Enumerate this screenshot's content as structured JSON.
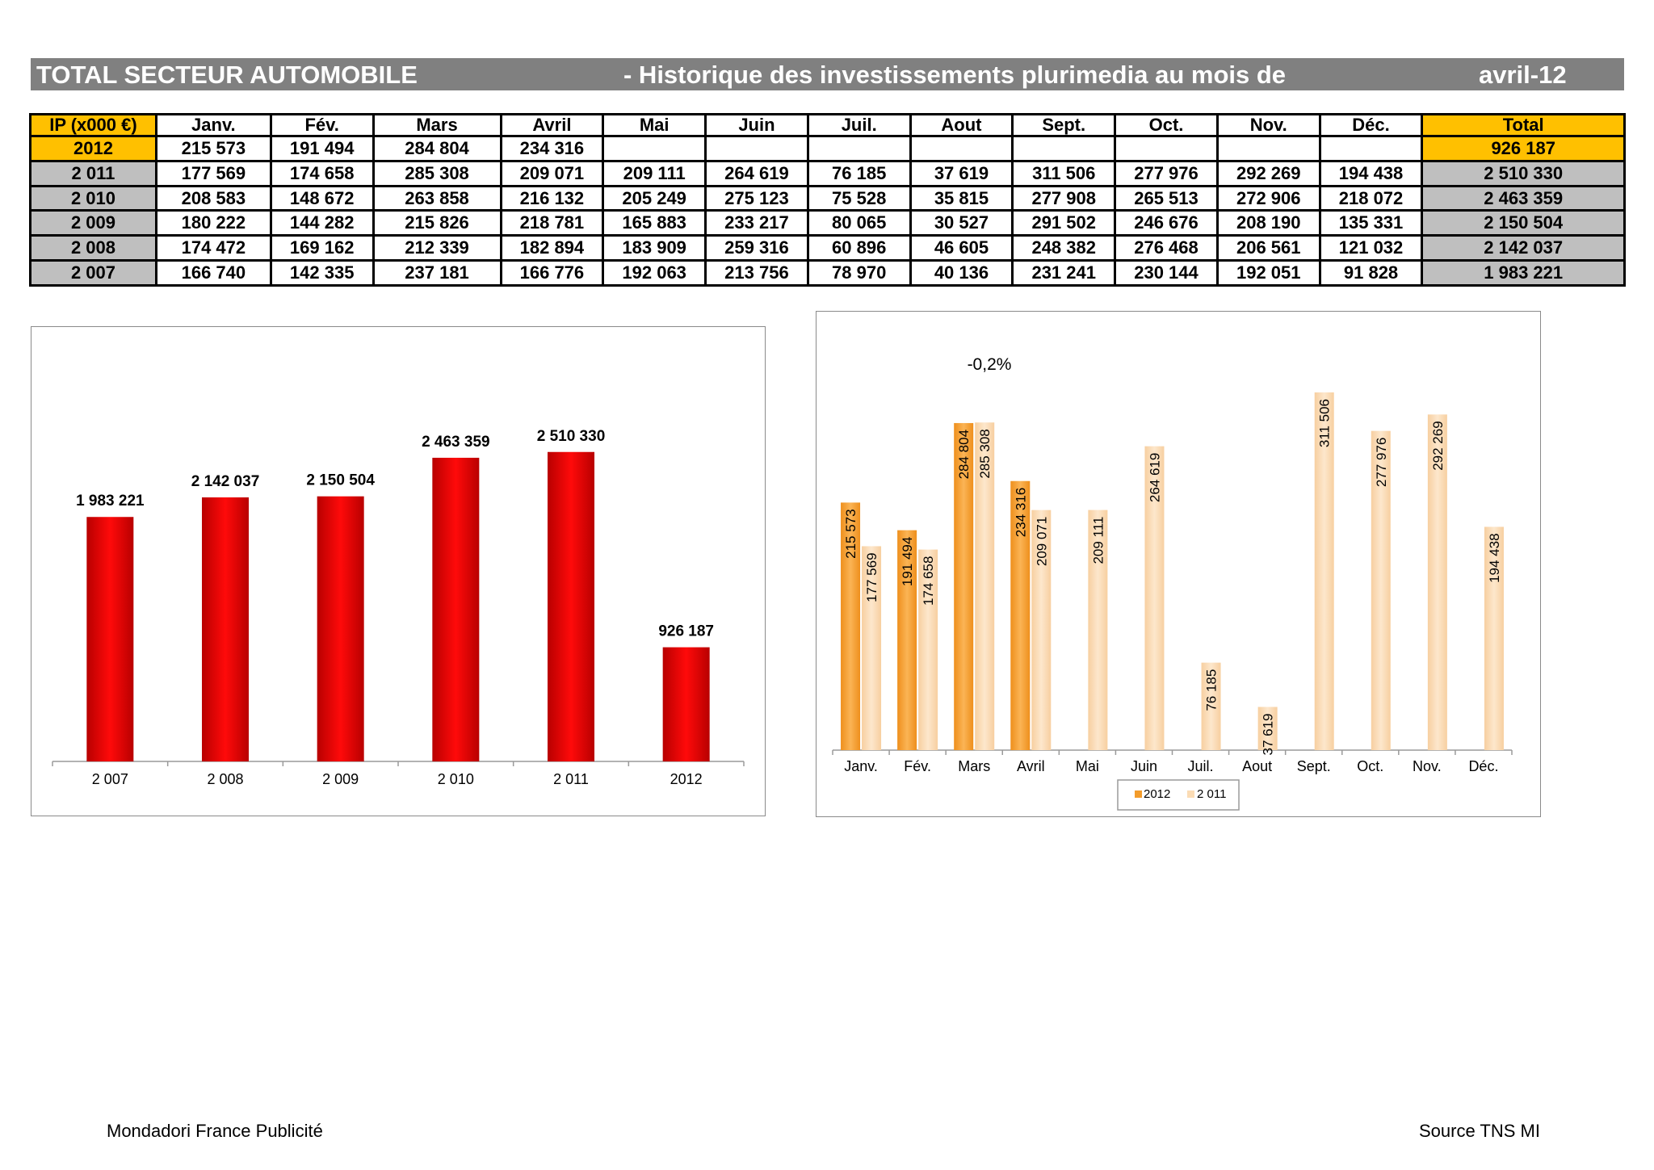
{
  "banner": {
    "left": "TOTAL SECTEUR AUTOMOBILE",
    "middle": "- Historique des investissements plurimedia au mois de",
    "right": "avril-12"
  },
  "table": {
    "headers": [
      "IP (x000 €)",
      "Janv.",
      "Fév.",
      "Mars",
      "Avril",
      "Mai",
      "Juin",
      "Juil.",
      "Aout",
      "Sept.",
      "Oct.",
      "Nov.",
      "Déc.",
      "Total"
    ],
    "rows": [
      [
        "2012",
        "215 573",
        "191 494",
        "284 804",
        "234 316",
        "",
        "",
        "",
        "",
        "",
        "",
        "",
        "",
        "926 187"
      ],
      [
        "2 011",
        "177 569",
        "174 658",
        "285 308",
        "209 071",
        "209 111",
        "264 619",
        "76 185",
        "37 619",
        "311 506",
        "277 976",
        "292 269",
        "194 438",
        "2 510 330"
      ],
      [
        "2 010",
        "208 583",
        "148 672",
        "263 858",
        "216 132",
        "205 249",
        "275 123",
        "75 528",
        "35 815",
        "277 908",
        "265 513",
        "272 906",
        "218 072",
        "2 463 359"
      ],
      [
        "2 009",
        "180 222",
        "144 282",
        "215 826",
        "218 781",
        "165 883",
        "233 217",
        "80 065",
        "30 527",
        "291 502",
        "246 676",
        "208 190",
        "135 331",
        "2 150 504"
      ],
      [
        "2 008",
        "174 472",
        "169 162",
        "212 339",
        "182 894",
        "183 909",
        "259 316",
        "60 896",
        "46 605",
        "248 382",
        "276 468",
        "206 561",
        "121 032",
        "2 142 037"
      ],
      [
        "2 007",
        "166 740",
        "142 335",
        "237 181",
        "166 776",
        "192 063",
        "213 756",
        "78 970",
        "40 136",
        "231 241",
        "230 144",
        "192 051",
        "91 828",
        "1 983 221"
      ]
    ]
  },
  "chart_data": [
    {
      "type": "bar",
      "categories": [
        "2 007",
        "2 008",
        "2 009",
        "2 010",
        "2 011",
        "2012"
      ],
      "values": [
        1983221,
        2142037,
        2150504,
        2463359,
        2510330,
        926187
      ],
      "value_labels": [
        "1 983 221",
        "2 142 037",
        "2 150 504",
        "2 463 359",
        "2 510 330",
        "926 187"
      ],
      "ylim": [
        0,
        3000000
      ],
      "colors": {
        "bar_dark": "#b80000",
        "bar_light": "#ff0a0a"
      }
    },
    {
      "type": "bar",
      "annotation": "-0,2%",
      "categories": [
        "Janv.",
        "Fév.",
        "Mars",
        "Avril",
        "Mai",
        "Juin",
        "Juil.",
        "Aout",
        "Sept.",
        "Oct.",
        "Nov.",
        "Déc."
      ],
      "series": [
        {
          "name": "2012",
          "values": [
            215573,
            191494,
            284804,
            234316,
            null,
            null,
            null,
            null,
            null,
            null,
            null,
            null
          ],
          "labels": [
            "215 573",
            "191 494",
            "284 804",
            "234 316",
            "",
            "",
            "",
            "",
            "",
            "",
            "",
            ""
          ],
          "color": "#f39c2b"
        },
        {
          "name": "2 011",
          "values": [
            177569,
            174658,
            285308,
            209071,
            209111,
            264619,
            76185,
            37619,
            311506,
            277976,
            292269,
            194438
          ],
          "labels": [
            "177 569",
            "174 658",
            "285 308",
            "209 071",
            "209 111",
            "264 619",
            "76 185",
            "37 619",
            "311 506",
            "277 976",
            "292 269",
            "194 438"
          ],
          "color": "#fbdcb5"
        }
      ],
      "ylim": [
        0,
        350000
      ],
      "legend": "bottom"
    }
  ],
  "footer": {
    "left": "Mondadori France Publicité",
    "right": "Source TNS MI"
  }
}
